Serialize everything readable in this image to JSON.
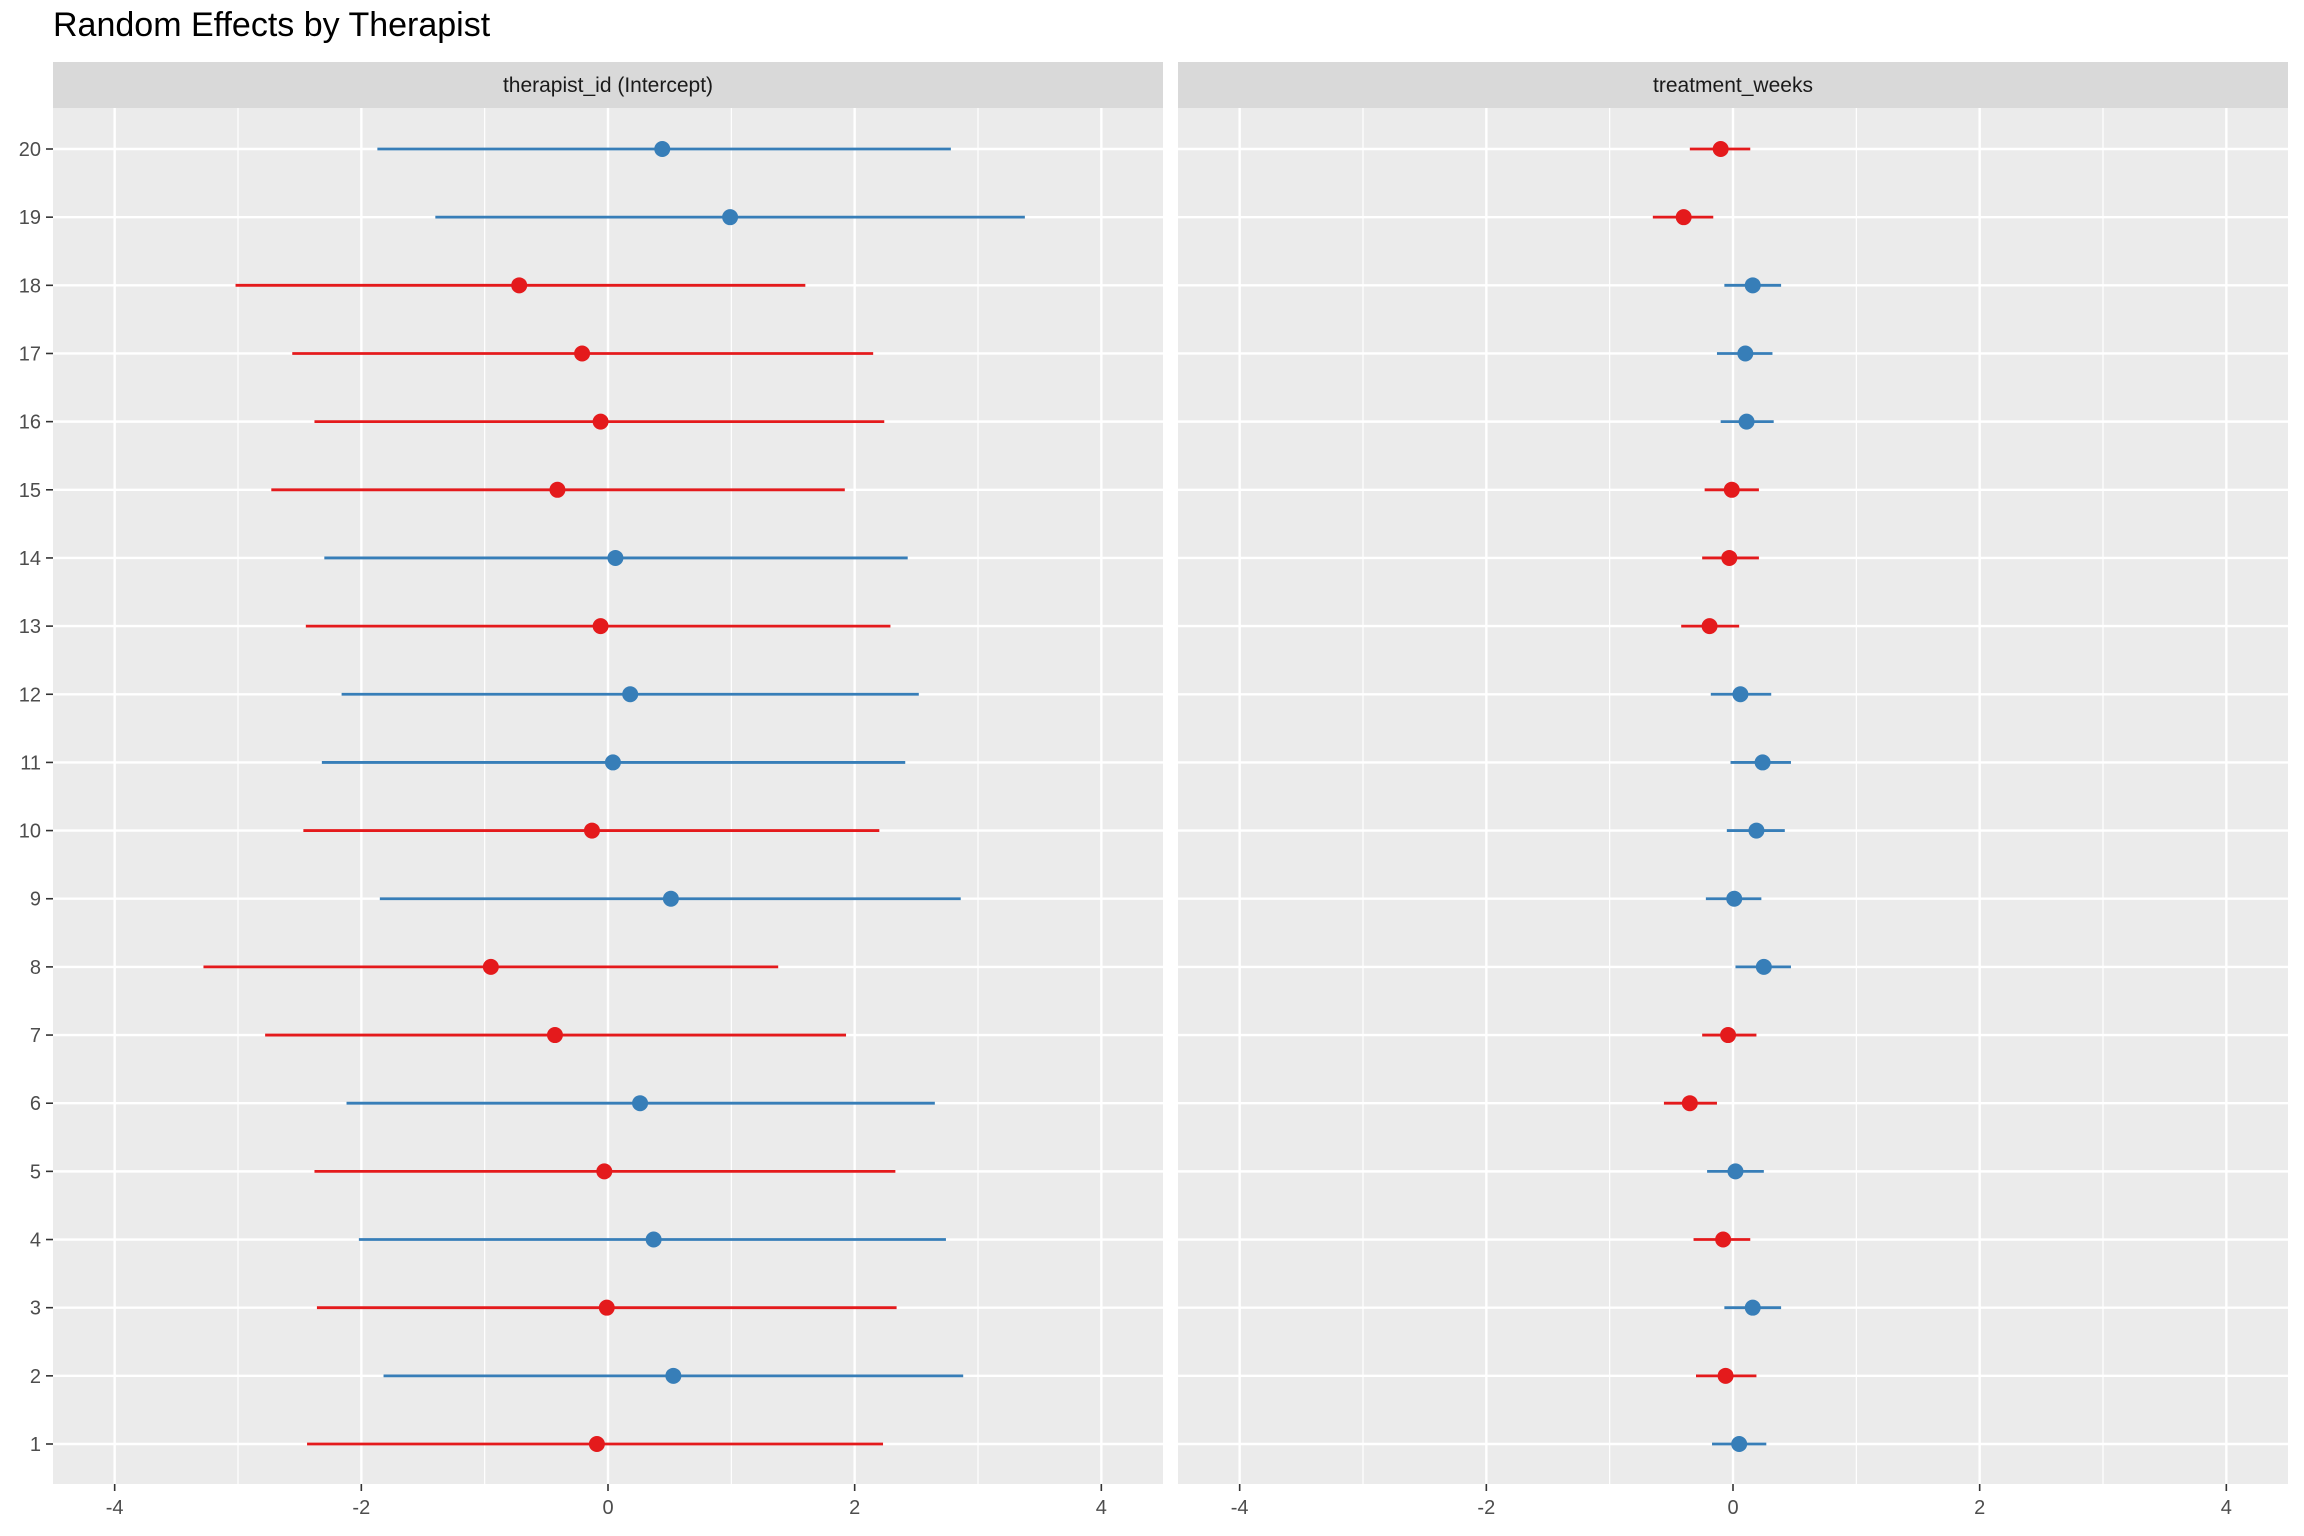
{
  "chart_data": {
    "type": "forest",
    "title": "Random Effects by Therapist",
    "xlabel": "",
    "ylabel": "",
    "xlim": [
      -4.5,
      4.5
    ],
    "x_ticks": [
      -4,
      -2,
      0,
      2,
      4
    ],
    "x_tick_labels": [
      "-4",
      "-2",
      "0",
      "2",
      "4"
    ],
    "y_categories": [
      "1",
      "2",
      "3",
      "4",
      "5",
      "6",
      "7",
      "8",
      "9",
      "10",
      "11",
      "12",
      "13",
      "14",
      "15",
      "16",
      "17",
      "18",
      "19",
      "20"
    ],
    "grid": true,
    "legend": "none",
    "colors": {
      "positive": "#377EB8",
      "negative": "#E41A1C",
      "panel_bg": "#EBEBEB",
      "strip_bg": "#D9D9D9",
      "grid": "#FFFFFF"
    },
    "panels": [
      {
        "name": "therapist_id (Intercept)",
        "points": [
          {
            "id": "1",
            "estimate": -0.09,
            "lower": -2.44,
            "upper": 2.23
          },
          {
            "id": "2",
            "estimate": 0.53,
            "lower": -1.82,
            "upper": 2.88
          },
          {
            "id": "3",
            "estimate": -0.01,
            "lower": -2.36,
            "upper": 2.34
          },
          {
            "id": "4",
            "estimate": 0.37,
            "lower": -2.02,
            "upper": 2.74
          },
          {
            "id": "5",
            "estimate": -0.03,
            "lower": -2.38,
            "upper": 2.33
          },
          {
            "id": "6",
            "estimate": 0.26,
            "lower": -2.12,
            "upper": 2.65
          },
          {
            "id": "7",
            "estimate": -0.43,
            "lower": -2.78,
            "upper": 1.93
          },
          {
            "id": "8",
            "estimate": -0.95,
            "lower": -3.28,
            "upper": 1.38
          },
          {
            "id": "9",
            "estimate": 0.51,
            "lower": -1.85,
            "upper": 2.86
          },
          {
            "id": "10",
            "estimate": -0.13,
            "lower": -2.47,
            "upper": 2.2
          },
          {
            "id": "11",
            "estimate": 0.04,
            "lower": -2.32,
            "upper": 2.41
          },
          {
            "id": "12",
            "estimate": 0.18,
            "lower": -2.16,
            "upper": 2.52
          },
          {
            "id": "13",
            "estimate": -0.06,
            "lower": -2.45,
            "upper": 2.29
          },
          {
            "id": "14",
            "estimate": 0.06,
            "lower": -2.3,
            "upper": 2.43
          },
          {
            "id": "15",
            "estimate": -0.41,
            "lower": -2.73,
            "upper": 1.92
          },
          {
            "id": "16",
            "estimate": -0.06,
            "lower": -2.38,
            "upper": 2.24
          },
          {
            "id": "17",
            "estimate": -0.21,
            "lower": -2.56,
            "upper": 2.15
          },
          {
            "id": "18",
            "estimate": -0.72,
            "lower": -3.02,
            "upper": 1.6
          },
          {
            "id": "19",
            "estimate": 0.99,
            "lower": -1.4,
            "upper": 3.38
          },
          {
            "id": "20",
            "estimate": 0.44,
            "lower": -1.87,
            "upper": 2.78
          }
        ]
      },
      {
        "name": "treatment_weeks",
        "points": [
          {
            "id": "1",
            "estimate": 0.05,
            "lower": -0.17,
            "upper": 0.27
          },
          {
            "id": "2",
            "estimate": -0.06,
            "lower": -0.3,
            "upper": 0.19
          },
          {
            "id": "3",
            "estimate": 0.16,
            "lower": -0.07,
            "upper": 0.39
          },
          {
            "id": "4",
            "estimate": -0.08,
            "lower": -0.32,
            "upper": 0.14
          },
          {
            "id": "5",
            "estimate": 0.02,
            "lower": -0.21,
            "upper": 0.25
          },
          {
            "id": "6",
            "estimate": -0.35,
            "lower": -0.56,
            "upper": -0.13
          },
          {
            "id": "7",
            "estimate": -0.04,
            "lower": -0.25,
            "upper": 0.19
          },
          {
            "id": "8",
            "estimate": 0.25,
            "lower": 0.02,
            "upper": 0.47
          },
          {
            "id": "9",
            "estimate": 0.01,
            "lower": -0.22,
            "upper": 0.23
          },
          {
            "id": "10",
            "estimate": 0.19,
            "lower": -0.05,
            "upper": 0.42
          },
          {
            "id": "11",
            "estimate": 0.24,
            "lower": -0.02,
            "upper": 0.47
          },
          {
            "id": "12",
            "estimate": 0.06,
            "lower": -0.18,
            "upper": 0.31
          },
          {
            "id": "13",
            "estimate": -0.19,
            "lower": -0.42,
            "upper": 0.05
          },
          {
            "id": "14",
            "estimate": -0.03,
            "lower": -0.25,
            "upper": 0.21
          },
          {
            "id": "15",
            "estimate": -0.01,
            "lower": -0.23,
            "upper": 0.21
          },
          {
            "id": "16",
            "estimate": 0.11,
            "lower": -0.1,
            "upper": 0.33
          },
          {
            "id": "17",
            "estimate": 0.1,
            "lower": -0.13,
            "upper": 0.32
          },
          {
            "id": "18",
            "estimate": 0.16,
            "lower": -0.07,
            "upper": 0.39
          },
          {
            "id": "19",
            "estimate": -0.4,
            "lower": -0.65,
            "upper": -0.16
          },
          {
            "id": "20",
            "estimate": -0.1,
            "lower": -0.35,
            "upper": 0.14
          }
        ]
      }
    ]
  }
}
